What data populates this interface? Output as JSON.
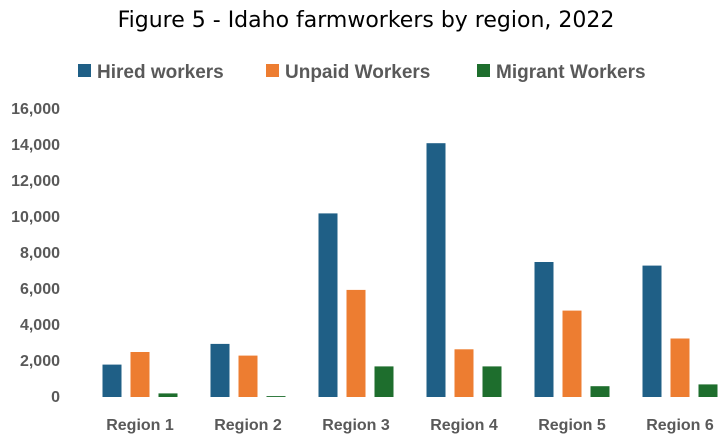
{
  "chart_data": {
    "type": "bar",
    "title": "Figure 5 - Idaho farmworkers by region, 2022",
    "xlabel": "",
    "ylabel": "",
    "categories": [
      "Region 1",
      "Region 2",
      "Region 3",
      "Region 4",
      "Region 5",
      "Region 6"
    ],
    "series": [
      {
        "name": "Hired workers",
        "color": "#1F5F86",
        "values": [
          1800,
          2950,
          10200,
          14100,
          7500,
          7300
        ]
      },
      {
        "name": "Unpaid Workers",
        "color": "#ED7D31",
        "values": [
          2500,
          2300,
          5950,
          2650,
          4800,
          3250
        ]
      },
      {
        "name": "Migrant Workers",
        "color": "#1E6E2D",
        "values": [
          200,
          50,
          1700,
          1700,
          600,
          700
        ]
      }
    ],
    "ylim": [
      0,
      16000
    ],
    "yticks": [
      0,
      2000,
      4000,
      6000,
      8000,
      10000,
      12000,
      14000,
      16000
    ],
    "ytick_labels": [
      "0",
      "2,000",
      "4,000",
      "6,000",
      "8,000",
      "10,000",
      "12,000",
      "14,000",
      "16,000"
    ],
    "grid": false,
    "legend_position": "top"
  }
}
